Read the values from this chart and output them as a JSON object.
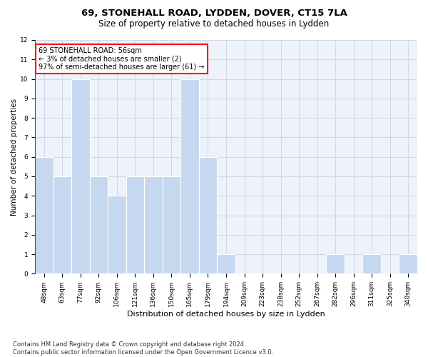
{
  "title1": "69, STONEHALL ROAD, LYDDEN, DOVER, CT15 7LA",
  "title2": "Size of property relative to detached houses in Lydden",
  "xlabel": "Distribution of detached houses by size in Lydden",
  "ylabel": "Number of detached properties",
  "categories": [
    "48sqm",
    "63sqm",
    "77sqm",
    "92sqm",
    "106sqm",
    "121sqm",
    "136sqm",
    "150sqm",
    "165sqm",
    "179sqm",
    "194sqm",
    "209sqm",
    "223sqm",
    "238sqm",
    "252sqm",
    "267sqm",
    "282sqm",
    "296sqm",
    "311sqm",
    "325sqm",
    "340sqm"
  ],
  "values": [
    6,
    5,
    10,
    5,
    4,
    5,
    5,
    5,
    10,
    6,
    1,
    0,
    0,
    0,
    0,
    0,
    1,
    0,
    1,
    0,
    1
  ],
  "bar_color": "#c5d8f0",
  "bar_edge_color": "#c5d8f0",
  "annotation_text": "69 STONEHALL ROAD: 56sqm\n← 3% of detached houses are smaller (2)\n97% of semi-detached houses are larger (61) →",
  "annotation_box_color": "white",
  "annotation_box_edge_color": "red",
  "vline_color": "red",
  "ylim": [
    0,
    12
  ],
  "yticks": [
    0,
    1,
    2,
    3,
    4,
    5,
    6,
    7,
    8,
    9,
    10,
    11,
    12
  ],
  "grid_color": "#d0d8e8",
  "background_color": "#eef2fa",
  "footer_text": "Contains HM Land Registry data © Crown copyright and database right 2024.\nContains public sector information licensed under the Open Government Licence v3.0.",
  "title1_fontsize": 9.5,
  "title2_fontsize": 8.5,
  "xlabel_fontsize": 8,
  "ylabel_fontsize": 7.5,
  "tick_fontsize": 6.5,
  "annotation_fontsize": 7,
  "footer_fontsize": 6
}
